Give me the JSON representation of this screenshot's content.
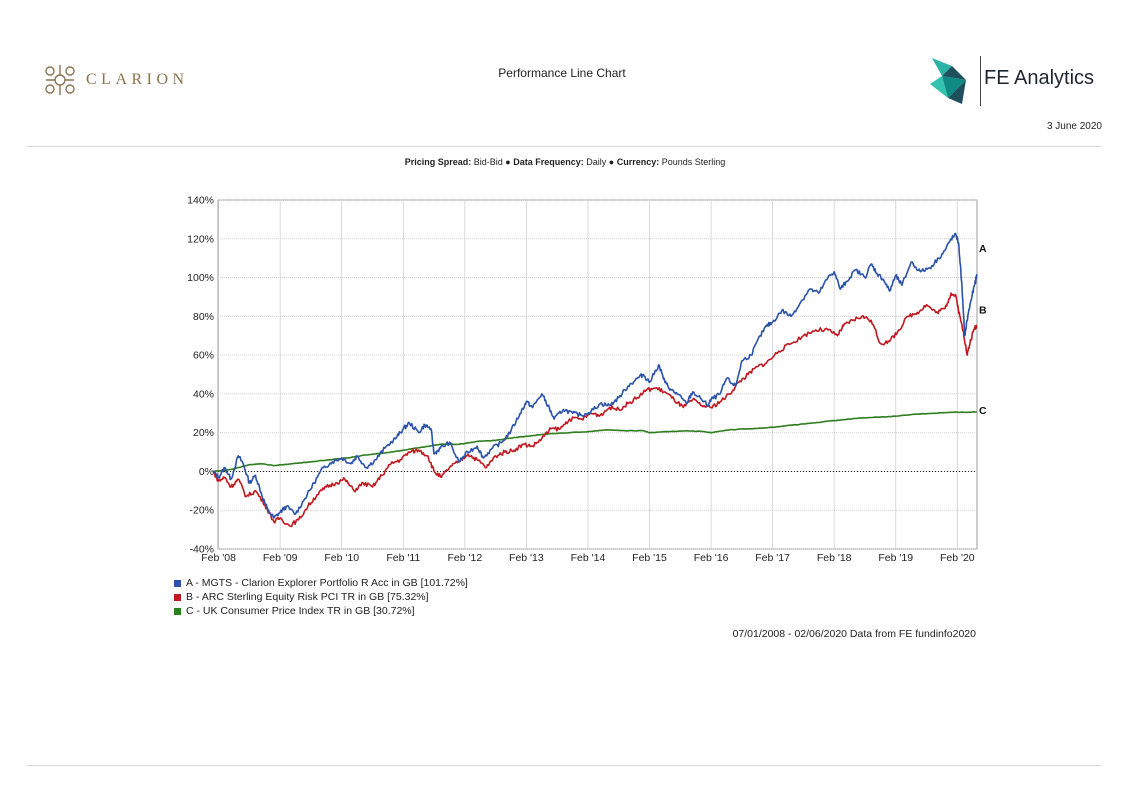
{
  "header": {
    "brand_left": "CLARION",
    "title": "Performance Line Chart",
    "brand_right": "FE Analytics",
    "date": "3 June 2020"
  },
  "settings": {
    "pricing_spread_label": "Pricing Spread:",
    "pricing_spread_value": "Bid-Bid",
    "frequency_label": "Data Frequency:",
    "frequency_value": "Daily",
    "currency_label": "Currency:",
    "currency_value": "Pounds Sterling",
    "separator": "●"
  },
  "legend": [
    {
      "label": "A - MGTS - Clarion Explorer Portfolio R Acc in GB [101.72%]",
      "color": "#2a52a8"
    },
    {
      "label": "B - ARC Sterling Equity Risk PCI TR in GB [75.32%]",
      "color": "#c0181e"
    },
    {
      "label": "C - UK Consumer Price Index TR in GB [30.72%]",
      "color": "#2e7d1e"
    }
  ],
  "source_note": "07/01/2008 - 02/06/2020 Data from FE fundinfo2020",
  "chart_data": {
    "type": "line",
    "xlabel": "",
    "ylabel": "",
    "ylim": [
      -40,
      140
    ],
    "yticks": [
      -40,
      -20,
      0,
      20,
      40,
      60,
      80,
      100,
      120,
      140
    ],
    "ytick_labels": [
      "-40%",
      "-20%",
      "0%",
      "20%",
      "40%",
      "60%",
      "80%",
      "100%",
      "120%",
      "140%"
    ],
    "xlim": [
      2008.09,
      2020.42
    ],
    "xticks": [
      2008.1,
      2009.1,
      2010.1,
      2011.1,
      2012.1,
      2013.1,
      2014.1,
      2015.1,
      2016.1,
      2017.1,
      2018.1,
      2019.1,
      2020.1
    ],
    "xtick_labels": [
      "Feb '08",
      "Feb '09",
      "Feb '10",
      "Feb '11",
      "Feb '12",
      "Feb '13",
      "Feb '14",
      "Feb '15",
      "Feb '16",
      "Feb '17",
      "Feb '18",
      "Feb '19",
      "Feb '20"
    ],
    "grid": true,
    "zero_line": true,
    "series": [
      {
        "name": "A",
        "color": "#2a52a8",
        "end_label": "A",
        "x": [
          2008.01,
          2008.1,
          2008.2,
          2008.3,
          2008.42,
          2008.5,
          2008.6,
          2008.7,
          2008.8,
          2008.9,
          2009.0,
          2009.1,
          2009.2,
          2009.35,
          2009.5,
          2009.65,
          2009.8,
          2009.95,
          2010.1,
          2010.25,
          2010.35,
          2010.5,
          2010.65,
          2010.8,
          2011.0,
          2011.1,
          2011.2,
          2011.35,
          2011.45,
          2011.55,
          2011.6,
          2011.7,
          2011.85,
          2012.0,
          2012.15,
          2012.3,
          2012.4,
          2012.55,
          2012.7,
          2012.85,
          2013.0,
          2013.1,
          2013.2,
          2013.35,
          2013.45,
          2013.55,
          2013.7,
          2013.85,
          2014.0,
          2014.15,
          2014.3,
          2014.45,
          2014.6,
          2014.75,
          2014.9,
          2015.0,
          2015.1,
          2015.25,
          2015.35,
          2015.45,
          2015.55,
          2015.7,
          2015.8,
          2015.95,
          2016.05,
          2016.1,
          2016.25,
          2016.35,
          2016.5,
          2016.6,
          2016.75,
          2016.9,
          2017.0,
          2017.1,
          2017.25,
          2017.4,
          2017.55,
          2017.7,
          2017.85,
          2018.0,
          2018.1,
          2018.2,
          2018.3,
          2018.45,
          2018.6,
          2018.7,
          2018.8,
          2018.9,
          2019.0,
          2019.1,
          2019.2,
          2019.35,
          2019.5,
          2019.65,
          2019.8,
          2019.9,
          2020.0,
          2020.08,
          2020.12,
          2020.17,
          2020.22,
          2020.27,
          2020.32,
          2020.38,
          2020.42
        ],
        "values": [
          0,
          -3,
          2,
          -4,
          8,
          4,
          -6,
          -2,
          -12,
          -20,
          -24,
          -21,
          -18,
          -22,
          -14,
          -6,
          2,
          5,
          7,
          4,
          8,
          2,
          6,
          12,
          18,
          22,
          25,
          20,
          24,
          22,
          9,
          12,
          15,
          5,
          10,
          13,
          7,
          12,
          15,
          21,
          30,
          36,
          33,
          40,
          34,
          27,
          32,
          30,
          29,
          31,
          35,
          34,
          38,
          44,
          48,
          50,
          46,
          55,
          46,
          42,
          40,
          35,
          41,
          37,
          34,
          37,
          40,
          48,
          44,
          57,
          60,
          70,
          75,
          77,
          83,
          80,
          87,
          94,
          92,
          100,
          103,
          94,
          98,
          104,
          100,
          107,
          102,
          99,
          93,
          101,
          96,
          108,
          103,
          105,
          110,
          114,
          120,
          122,
          118,
          98,
          70,
          80,
          88,
          96,
          101.72
        ]
      },
      {
        "name": "B",
        "color": "#c0181e",
        "end_label": "B",
        "x": [
          2008.01,
          2008.1,
          2008.2,
          2008.3,
          2008.42,
          2008.55,
          2008.7,
          2008.85,
          2009.0,
          2009.1,
          2009.25,
          2009.4,
          2009.55,
          2009.7,
          2009.85,
          2010.0,
          2010.15,
          2010.3,
          2010.45,
          2010.6,
          2010.75,
          2010.9,
          2011.05,
          2011.2,
          2011.35,
          2011.5,
          2011.6,
          2011.72,
          2011.85,
          2012.0,
          2012.15,
          2012.3,
          2012.45,
          2012.6,
          2012.75,
          2012.9,
          2013.05,
          2013.2,
          2013.35,
          2013.5,
          2013.65,
          2013.8,
          2014.0,
          2014.15,
          2014.3,
          2014.45,
          2014.6,
          2014.75,
          2014.9,
          2015.05,
          2015.2,
          2015.35,
          2015.5,
          2015.65,
          2015.8,
          2015.95,
          2016.1,
          2016.25,
          2016.4,
          2016.55,
          2016.7,
          2016.85,
          2017.0,
          2017.2,
          2017.4,
          2017.6,
          2017.8,
          2018.0,
          2018.15,
          2018.25,
          2018.4,
          2018.55,
          2018.7,
          2018.85,
          2019.0,
          2019.15,
          2019.3,
          2019.45,
          2019.6,
          2019.75,
          2019.9,
          2020.0,
          2020.08,
          2020.14,
          2020.2,
          2020.26,
          2020.32,
          2020.38,
          2020.42
        ],
        "values": [
          0,
          -5,
          -3,
          -8,
          -4,
          -13,
          -10,
          -17,
          -26,
          -24,
          -28,
          -25,
          -18,
          -12,
          -8,
          -6,
          -4,
          -10,
          -6,
          -8,
          -2,
          4,
          6,
          10,
          11,
          8,
          0,
          -3,
          2,
          5,
          9,
          6,
          2,
          8,
          10,
          11,
          14,
          13,
          17,
          22,
          22,
          27,
          27,
          30,
          29,
          33,
          32,
          35,
          38,
          42,
          43,
          41,
          37,
          33,
          37,
          34,
          33,
          36,
          40,
          46,
          50,
          54,
          56,
          62,
          66,
          70,
          73,
          73,
          70,
          75,
          78,
          80,
          78,
          66,
          67,
          73,
          80,
          82,
          86,
          82,
          84,
          92,
          90,
          80,
          72,
          60,
          68,
          74,
          75.32
        ]
      },
      {
        "name": "C",
        "color": "#2e7d1e",
        "end_label": "C",
        "x": [
          2008.01,
          2008.3,
          2008.6,
          2008.8,
          2009.0,
          2009.3,
          2009.6,
          2009.9,
          2010.2,
          2010.5,
          2010.8,
          2011.1,
          2011.4,
          2011.7,
          2012.0,
          2012.3,
          2012.6,
          2012.9,
          2013.2,
          2013.5,
          2013.8,
          2014.1,
          2014.4,
          2014.7,
          2015.0,
          2015.1,
          2015.4,
          2015.7,
          2016.0,
          2016.1,
          2016.4,
          2016.7,
          2017.0,
          2017.3,
          2017.6,
          2017.9,
          2018.2,
          2018.5,
          2018.8,
          2019.1,
          2019.4,
          2019.7,
          2020.0,
          2020.2,
          2020.42
        ],
        "values": [
          0,
          1,
          3.5,
          4,
          3,
          4,
          5,
          6,
          7,
          8.5,
          9.5,
          11,
          12.5,
          14,
          14,
          15.5,
          16,
          17.5,
          18.5,
          19.5,
          20,
          20.5,
          21.5,
          21,
          21,
          20,
          20.5,
          21,
          20.5,
          20,
          21.5,
          22,
          22.5,
          23.5,
          24.5,
          25.5,
          26.5,
          27.5,
          28,
          28.5,
          29.5,
          30,
          30.5,
          30.5,
          30.72
        ]
      }
    ]
  }
}
